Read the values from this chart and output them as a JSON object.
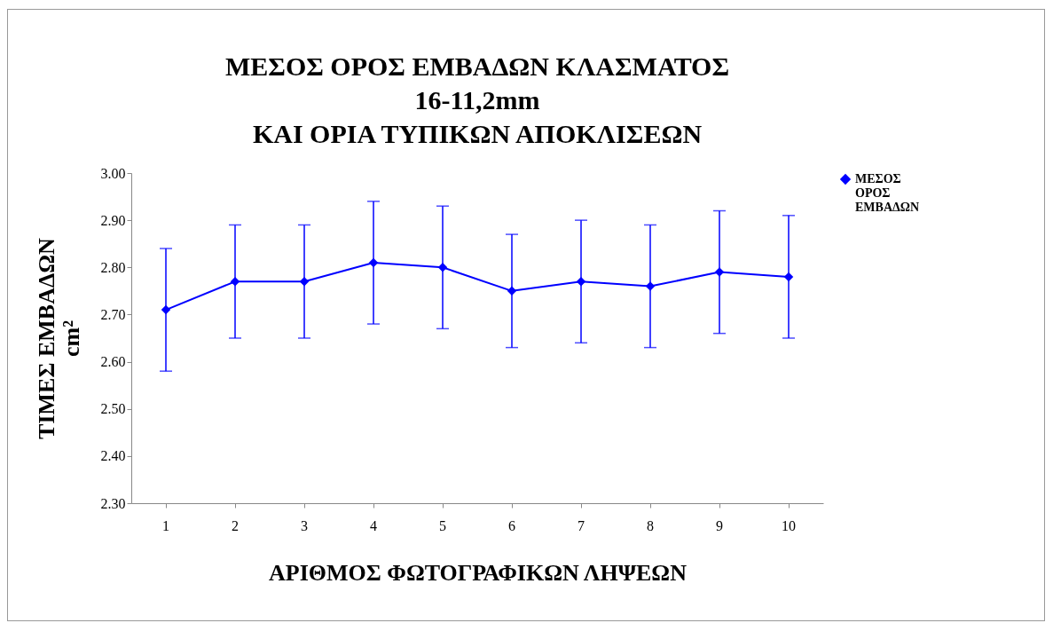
{
  "chart_data": {
    "type": "line",
    "title": "ΜΕΣΟΣ ΟΡΟΣ ΕΜΒΑΔΩΝ ΚΛΑΣΜΑΤΟΣ\n16-11,2mm\nΚΑΙ ΟΡΙΑ ΤΥΠΙΚΩΝ ΑΠΟΚΛΙΣΕΩΝ",
    "xlabel": "ΑΡΙΘΜΟΣ ΦΩΤΟΓΡΑΦΙΚΩΝ ΛΗΨΕΩΝ",
    "ylabel": "ΤΙΜΕΣ ΕΜΒΑΔΩΝ\ncm²",
    "categories": [
      "1",
      "2",
      "3",
      "4",
      "5",
      "6",
      "7",
      "8",
      "9",
      "10"
    ],
    "series": [
      {
        "name": "ΜΕΣΟΣ ΟΡΟΣ ΕΜΒΑΔΩΝ",
        "color": "#0000ff",
        "values": [
          2.71,
          2.77,
          2.77,
          2.81,
          2.8,
          2.75,
          2.77,
          2.76,
          2.79,
          2.78
        ],
        "errors": [
          0.13,
          0.12,
          0.12,
          0.13,
          0.13,
          0.12,
          0.13,
          0.13,
          0.13,
          0.13
        ]
      }
    ],
    "ylim": [
      2.3,
      3.0
    ],
    "yticks": [
      {
        "value": 2.3,
        "label": "2.30"
      },
      {
        "value": 2.4,
        "label": "2.40"
      },
      {
        "value": 2.5,
        "label": "2.50"
      },
      {
        "value": 2.6,
        "label": "2.60"
      },
      {
        "value": 2.7,
        "label": "2.70"
      },
      {
        "value": 2.8,
        "label": "2.80"
      },
      {
        "value": 2.9,
        "label": "2.90"
      },
      {
        "value": 3.0,
        "label": "3.00"
      }
    ],
    "grid": false,
    "legend": "right",
    "marker": "diamond",
    "line_style": "solid"
  }
}
